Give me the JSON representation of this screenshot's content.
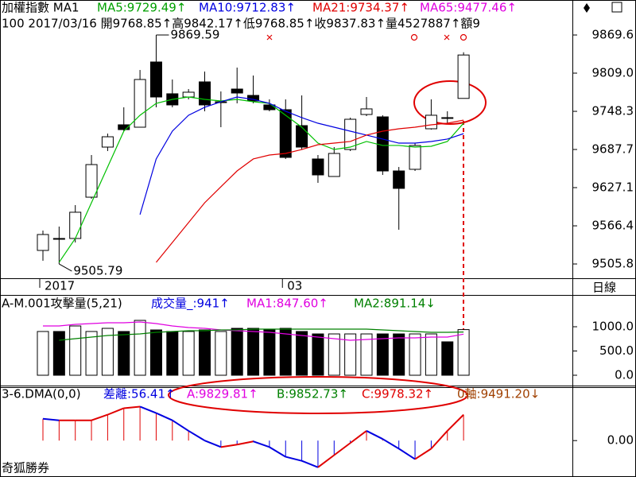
{
  "chart_data": [
    {
      "type": "candlestick",
      "header": [
        {
          "text": "加權指數 MA1",
          "color": "#000000"
        },
        {
          "text": "MA5:9729.49↑",
          "color": "#00a000"
        },
        {
          "text": "MA10:9712.83↑",
          "color": "#0000e0"
        },
        {
          "text": "MA21:9734.37↑",
          "color": "#e00000"
        },
        {
          "text": "MA65:9477.46↑",
          "color": "#e000e0"
        }
      ],
      "info": "100 2017/03/16 開9768.85↑高9842.17↑低9768.85↑收9837.83↑量4527887↑額9",
      "period": "日線",
      "categories": [
        "2017",
        null,
        null,
        null,
        null,
        null,
        null,
        null,
        null,
        null,
        null,
        null,
        null,
        null,
        null,
        "03",
        null,
        null,
        null,
        null,
        null,
        null,
        null,
        null,
        null,
        null,
        null
      ],
      "open": [
        9527.3,
        9546.3,
        9546.3,
        9611.9,
        9691.5,
        9726.9,
        9723.1,
        9826.7,
        9776.2,
        9771.1,
        9795.1,
        9762.2,
        9783.7,
        9773.6,
        9758.5,
        9750.9,
        9725.6,
        9672.6,
        9644.8,
        9687.7,
        9743.3,
        9739.5,
        9653.6,
        9656.2,
        9720.6,
        9738.3,
        9768.85
      ],
      "high": [
        9558.9,
        9565.2,
        9599.3,
        9678.9,
        9713.0,
        9754.7,
        9814.0,
        9869.59,
        9798.9,
        9783.7,
        9811.5,
        9779.9,
        9817.8,
        9805.2,
        9767.3,
        9767.3,
        9773.6,
        9678.9,
        9691.5,
        9738.3,
        9771.1,
        9742.1,
        9659.9,
        9697.9,
        9767.3,
        9748.4,
        9842.17
      ],
      "low": [
        9510.9,
        9505.79,
        9539.9,
        9609.4,
        9685.2,
        9716.8,
        9723.1,
        9754.7,
        9754.7,
        9767.3,
        9748.4,
        9723.1,
        9761.0,
        9761.0,
        9748.4,
        9672.6,
        9687.7,
        9634.7,
        9644.8,
        9685.2,
        9740.8,
        9647.3,
        9560.2,
        9653.6,
        9719.3,
        9729.4,
        9768.85
      ],
      "close": [
        9552.6,
        9546.3,
        9588.0,
        9663.7,
        9707.9,
        9719.3,
        9798.9,
        9771.1,
        9758.5,
        9778.7,
        9758.5,
        9763.5,
        9777.4,
        9764.8,
        9750.9,
        9675.1,
        9691.5,
        9647.3,
        9681.4,
        9735.7,
        9752.2,
        9653.6,
        9625.9,
        9694.0,
        9742.1,
        9738.3,
        9837.83
      ],
      "high_label": "9869.59",
      "low_label": "9505.79",
      "series": [
        {
          "color": "#00c000",
          "values": [
            null,
            9508.4,
            9546.3,
            9603.1,
            9659.9,
            9716.8,
            9742.1,
            9761.0,
            9767.3,
            9771.1,
            9767.3,
            9764.8,
            9767.3,
            9763.5,
            9761.0,
            9742.1,
            9723.1,
            9697.8,
            9687.7,
            9691.5,
            9700.4,
            9694.1,
            9694.1,
            9691.5,
            9692.8,
            9700.4,
            9729.49
          ]
        },
        {
          "color": "#0000e0",
          "values": [
            null,
            null,
            null,
            null,
            null,
            null,
            9584.2,
            9672.6,
            9716.8,
            9742.1,
            9754.7,
            9763.5,
            9771.1,
            9767.3,
            9761.0,
            9748.4,
            9738.3,
            9729.4,
            9723.1,
            9716.8,
            9710.5,
            9704.2,
            9697.8,
            9697.8,
            9700.4,
            9704.2,
            9712.83
          ]
        },
        {
          "color": "#e00000",
          "values": [
            null,
            null,
            null,
            null,
            null,
            null,
            null,
            9508.4,
            9540.0,
            9571.5,
            9603.1,
            9628.4,
            9653.6,
            9672.6,
            9678.9,
            9681.4,
            9687.7,
            9695.3,
            9697.8,
            9700.4,
            9710.5,
            9716.8,
            9720.6,
            9723.1,
            9726.9,
            9729.4,
            9734.37
          ]
        }
      ],
      "ylim": [
        9483.1,
        9925.2
      ],
      "yticks": [
        {
          "value": 9505.8,
          "label": "9505.8"
        },
        9566.4,
        9627.1,
        9687.7,
        9748.3,
        {
          "value": 9809,
          "label": "9809.0"
        },
        9869.6
      ]
    },
    {
      "type": "bar",
      "header": [
        {
          "text": "A-M.001攻擊量(5,21)",
          "color": "#000000"
        },
        {
          "text": "成交量_:941↑",
          "color": "#0000e0"
        },
        {
          "text": "MA1:847.60↑",
          "color": "#e000e0"
        },
        {
          "text": "MA2:891.14↓",
          "color": "#008000"
        }
      ],
      "values": [
        902,
        902,
        1016,
        902,
        967,
        902,
        1131,
        934,
        902,
        902,
        934,
        902,
        967,
        967,
        934,
        967,
        902,
        852,
        852,
        852,
        852,
        852,
        852,
        852,
        852,
        689,
        941
      ],
      "series": [
        {
          "color": "#e000e0",
          "values": [
            1016.4,
            1016.4,
            1049.2,
            1065.6,
            1082.0,
            1082.0,
            1098.4,
            1065.6,
            1016.4,
            983.6,
            967.2,
            934.4,
            918.0,
            901.6,
            885.2,
            852.5,
            819.7,
            786.9,
            754.1,
            721.3,
            737.7,
            754.1,
            770.5,
            770.5,
            786.9,
            786.9,
            847.6
          ]
        },
        {
          "color": "#008000",
          "values": [
            null,
            721.3,
            754.1,
            786.9,
            819.7,
            836.1,
            852.5,
            885.2,
            901.6,
            918.0,
            918.0,
            934.4,
            934.4,
            950.8,
            950.8,
            950.8,
            950.8,
            950.8,
            950.8,
            950.8,
            950.8,
            934.4,
            918.0,
            901.6,
            885.2,
            885.2,
            891.14
          ]
        }
      ],
      "ylim": [
        -213,
        1639
      ],
      "yticks": [
        {
          "value": 0,
          "label": "0.0"
        },
        {
          "value": 500,
          "label": "500.0"
        },
        {
          "value": 1000,
          "label": "1000.0"
        }
      ]
    },
    {
      "type": "line",
      "header": [
        {
          "text": "3-6.DMA(0,0)",
          "color": "#000000"
        },
        {
          "text": "差離:56.41↑",
          "color": "#0000e0"
        },
        {
          "text": "A:9829.81↑",
          "color": "#e000e0"
        },
        {
          "text": "B:9852.73↑",
          "color": "#008000"
        },
        {
          "text": "C:9978.32↑",
          "color": "#e00000"
        },
        {
          "text": "0軸:9491.20↓",
          "color": "#a04000"
        }
      ],
      "values": [
        47.6,
        44.1,
        44.1,
        44.1,
        56.4,
        70.5,
        74.0,
        59.9,
        44.1,
        21.2,
        0,
        -14.1,
        -8.8,
        -1.8,
        -14.1,
        -35.3,
        -44.1,
        -58.2,
        -31.7,
        -5.3,
        21.2,
        3.5,
        -17.6,
        -40.5,
        -17.6,
        21.2,
        56.41
      ],
      "up_color": "#e00000",
      "down_color": "#0000e0",
      "ylim": [
        -79.3,
        114.6
      ],
      "yticks": [
        {
          "value": 0,
          "label": "0.00"
        }
      ]
    }
  ],
  "footer": "奇狐勝券"
}
